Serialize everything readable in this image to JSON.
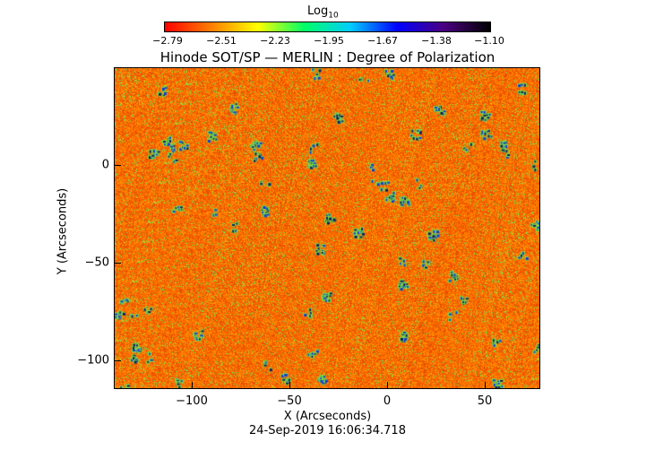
{
  "colorbar": {
    "scale_label": "Log",
    "scale_subscript": "10",
    "tick_labels": [
      "−2.79",
      "−2.51",
      "−2.23",
      "−1.95",
      "−1.67",
      "−1.38",
      "−1.10"
    ],
    "colors": [
      "#ff0000",
      "#ff7f00",
      "#ffff00",
      "#00ff66",
      "#00ccff",
      "#0000ff",
      "#4b0082",
      "#000000"
    ]
  },
  "title": "Hinode SOT/SP — MERLIN : Degree of Polarization",
  "axes": {
    "xlabel": "X (Arcseconds)",
    "ylabel": "Y (Arcseconds)",
    "x_ticks": [
      "−100",
      "−50",
      "0",
      "50"
    ],
    "y_ticks": [
      "0",
      "−50",
      "−100"
    ]
  },
  "timestamp": "24-Sep-2019 16:06:34.718",
  "map_colors": {
    "base": "#ff7a00",
    "dark": "#e94f00",
    "light": "#ffb000",
    "green": "#76e04c",
    "blue": "#1433d6",
    "navy": "#14145c"
  }
}
